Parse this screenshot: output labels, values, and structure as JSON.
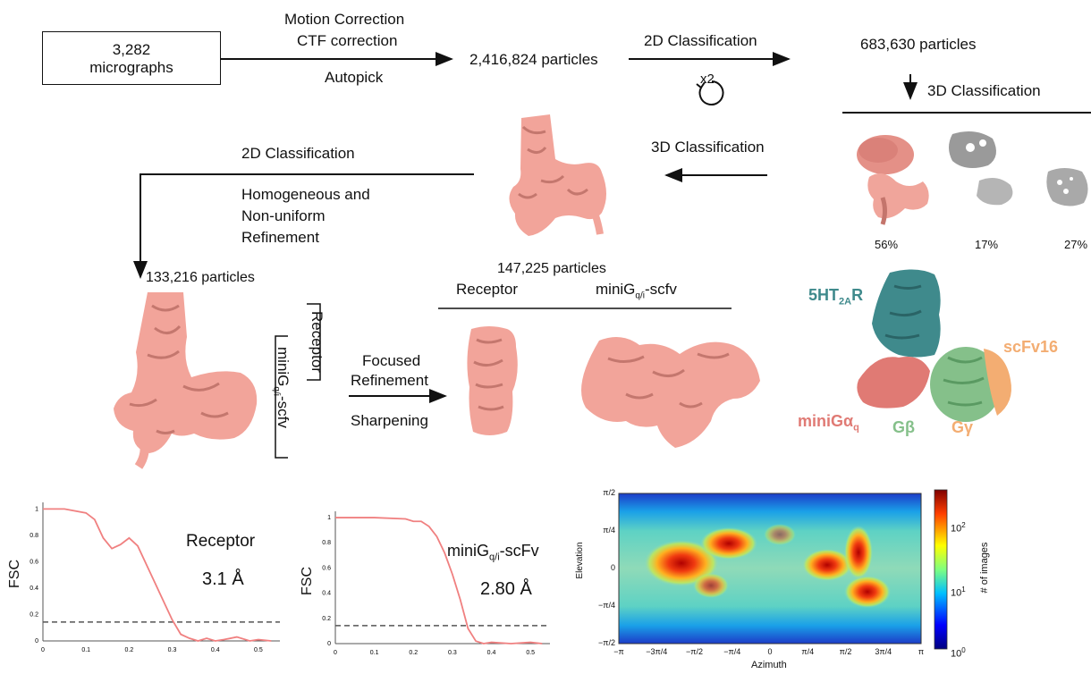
{
  "workflow": {
    "micrographs_count": "3,282",
    "micrographs_label": "micrographs",
    "motion_correction": "Motion Correction",
    "ctf_correction": "CTF correction",
    "autopick": "Autopick",
    "particles_initial": "2,416,824 particles",
    "classification_2d": "2D Classification",
    "repeat": "x2",
    "particles_after_2d": "683,630 particles",
    "classification_3d": "3D Classification",
    "class_percentages": [
      "56%",
      "17%",
      "27%"
    ],
    "classification_3d_left": "3D Classification",
    "particles_selected": "147,225 particles",
    "classification_2d_left": "2D Classification",
    "refinement_line1": "Homogeneous and",
    "refinement_line2": "Non-uniform",
    "refinement_line3": "Refinement",
    "particles_final": "133,216 particles",
    "mask_receptor": "Receptor",
    "mask_minig_base": "miniG",
    "mask_minig_sub": "q/i",
    "mask_minig_suffix": "-scfv",
    "focused_line1": "Focused",
    "focused_line2": "Refinement",
    "sharpening": "Sharpening",
    "map_receptor": "Receptor",
    "map_minig_base": "miniG",
    "map_minig_sub": "q/i",
    "map_minig_suffix": "-scfv"
  },
  "model_labels": {
    "receptor_base": "5HT",
    "receptor_sub": "2A",
    "receptor_suffix": "R",
    "scfv": "scFv16",
    "minig_base": "miniGα",
    "minig_sub": "q",
    "gbeta": "Gβ",
    "ggamma": "Gγ"
  },
  "colors": {
    "density": "#f2a49a",
    "density_dark": "#b46a60",
    "receptor": "#3f8a8c",
    "minig": "#e07a74",
    "gbeta": "#85c08a",
    "ggamma": "#f3ad72",
    "fsc_curve": "#f08080"
  },
  "fsc_receptor": {
    "title": "Receptor",
    "ylabel": "FSC",
    "resolution": "3.1 Å",
    "xticks": [
      "0",
      "0.1",
      "0.2",
      "0.3",
      "0.4",
      "0.5"
    ],
    "yticks": [
      "0",
      "0.2",
      "0.4",
      "0.6",
      "0.8",
      "1"
    ]
  },
  "fsc_minig": {
    "title_base": "miniG",
    "title_sub": "q/i",
    "title_suffix": "-scFv",
    "ylabel": "FSC",
    "resolution": "2.80 Å",
    "xticks": [
      "0",
      "0.1",
      "0.2",
      "0.3",
      "0.4",
      "0.5"
    ],
    "yticks": [
      "0",
      "0.2",
      "0.4",
      "0.6",
      "0.8",
      "1"
    ]
  },
  "angular": {
    "ylabel": "Elevation",
    "xlabel": "Azimuth",
    "colorbar_label": "# of images",
    "xticks": [
      "−π",
      "−3π/4",
      "−π/2",
      "−π/4",
      "0",
      "π/4",
      "π/2",
      "3π/4",
      "π"
    ],
    "yticks": [
      "π/2",
      "π/4",
      "0",
      "−π/4",
      "−π/2"
    ],
    "cbar_ticks_base": [
      "10",
      "10",
      "10"
    ],
    "cbar_ticks_exp": [
      "2",
      "1",
      "0"
    ]
  },
  "chart_data": [
    {
      "type": "line",
      "title": "Receptor",
      "xlabel": "",
      "ylabel": "FSC",
      "xlim": [
        0,
        0.55
      ],
      "ylim": [
        0,
        1.05
      ],
      "threshold": 0.143,
      "resolution_label": "3.1 Å",
      "series": [
        {
          "x": [
            0,
            0.05,
            0.1,
            0.12,
            0.14,
            0.16,
            0.18,
            0.2,
            0.22,
            0.24,
            0.26,
            0.28,
            0.3,
            0.32,
            0.34,
            0.36,
            0.38,
            0.4,
            0.42,
            0.45,
            0.48,
            0.5,
            0.53
          ],
          "values": [
            1.0,
            1.0,
            0.97,
            0.92,
            0.78,
            0.7,
            0.73,
            0.78,
            0.72,
            0.58,
            0.44,
            0.3,
            0.16,
            0.05,
            0.02,
            0.0,
            0.02,
            0.0,
            0.01,
            0.03,
            0.0,
            0.01,
            0.0
          ]
        }
      ]
    },
    {
      "type": "line",
      "title": "miniGq/i-scFv",
      "xlabel": "",
      "ylabel": "FSC",
      "xlim": [
        0,
        0.55
      ],
      "ylim": [
        0,
        1.05
      ],
      "threshold": 0.143,
      "resolution_label": "2.80 Å",
      "series": [
        {
          "x": [
            0,
            0.1,
            0.18,
            0.2,
            0.22,
            0.24,
            0.26,
            0.28,
            0.3,
            0.32,
            0.34,
            0.36,
            0.38,
            0.4,
            0.45,
            0.5,
            0.53
          ],
          "values": [
            1.0,
            1.0,
            0.99,
            0.97,
            0.97,
            0.93,
            0.85,
            0.72,
            0.55,
            0.35,
            0.12,
            0.02,
            0.0,
            0.01,
            0.0,
            0.01,
            0.0
          ]
        }
      ]
    }
  ]
}
